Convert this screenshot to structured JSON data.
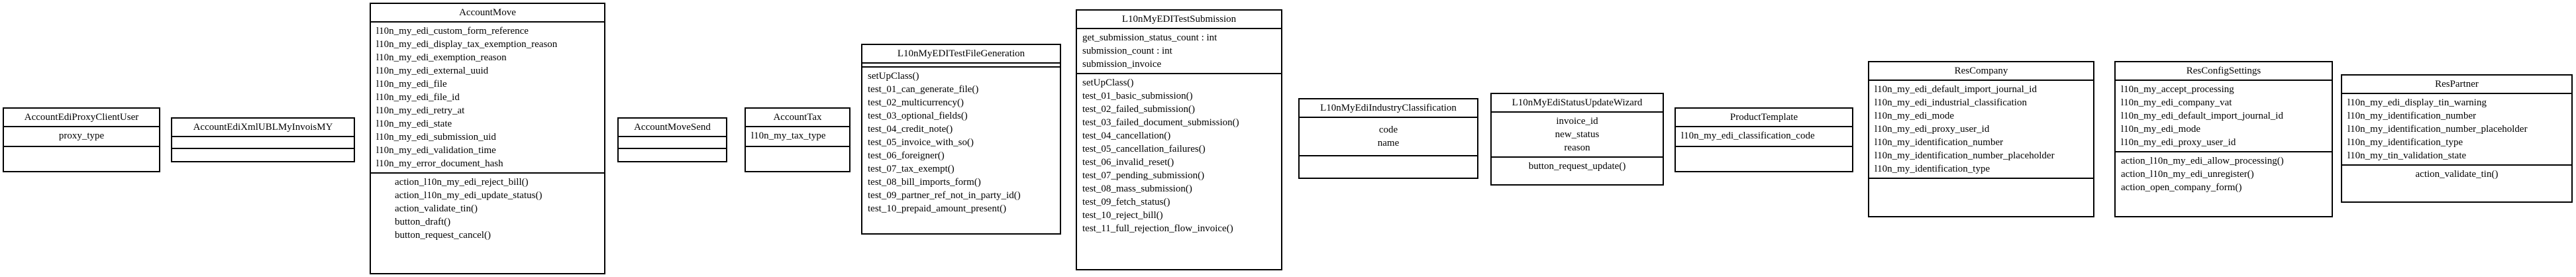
{
  "diagram": {
    "classes": [
      {
        "name": "AccountEdiProxyClientUser",
        "attributes": [
          "proxy_type"
        ],
        "methods": []
      },
      {
        "name": "AccountEdiXmlUBLMyInvoisMY",
        "attributes": [],
        "methods": []
      },
      {
        "name": "AccountMove",
        "attributes": [
          "l10n_my_edi_custom_form_reference",
          "l10n_my_edi_display_tax_exemption_reason",
          "l10n_my_edi_exemption_reason",
          "l10n_my_edi_external_uuid",
          "l10n_my_edi_file",
          "l10n_my_edi_file_id",
          "l10n_my_edi_retry_at",
          "l10n_my_edi_state",
          "l10n_my_edi_submission_uid",
          "l10n_my_edi_validation_time",
          "l10n_my_error_document_hash"
        ],
        "methods": [
          "action_l10n_my_edi_reject_bill()",
          "action_l10n_my_edi_update_status()",
          "action_validate_tin()",
          "button_draft()",
          "button_request_cancel()"
        ]
      },
      {
        "name": "AccountMoveSend",
        "attributes": [],
        "methods": []
      },
      {
        "name": "AccountTax",
        "attributes": [
          "l10n_my_tax_type"
        ],
        "methods": []
      },
      {
        "name": "L10nMyEDITestFileGeneration",
        "attributes": [],
        "methods": [
          "setUpClass()",
          "test_01_can_generate_file()",
          "test_02_multicurrency()",
          "test_03_optional_fields()",
          "test_04_credit_note()",
          "test_05_invoice_with_so()",
          "test_06_foreigner()",
          "test_07_tax_exempt()",
          "test_08_bill_imports_form()",
          "test_09_partner_ref_not_in_party_id()",
          "test_10_prepaid_amount_present()"
        ]
      },
      {
        "name": "L10nMyEDITestSubmission",
        "attributes": [
          "get_submission_status_count : int",
          "submission_count : int",
          "submission_invoice"
        ],
        "methods": [
          "setUpClass()",
          "test_01_basic_submission()",
          "test_02_failed_submission()",
          "test_03_failed_document_submission()",
          "test_04_cancellation()",
          "test_05_cancellation_failures()",
          "test_06_invalid_reset()",
          "test_07_pending_submission()",
          "test_08_mass_submission()",
          "test_09_fetch_status()",
          "test_10_reject_bill()",
          "test_11_full_rejection_flow_invoice()"
        ]
      },
      {
        "name": "L10nMyEdiIndustryClassification",
        "attributes": [
          "code",
          "name"
        ],
        "methods": []
      },
      {
        "name": "L10nMyEdiStatusUpdateWizard",
        "attributes": [
          "invoice_id",
          "new_status",
          "reason"
        ],
        "methods": [
          "button_request_update()"
        ]
      },
      {
        "name": "ProductTemplate",
        "attributes": [
          "l10n_my_edi_classification_code"
        ],
        "methods": []
      },
      {
        "name": "ResCompany",
        "attributes": [
          "l10n_my_edi_default_import_journal_id",
          "l10n_my_edi_industrial_classification",
          "l10n_my_edi_mode",
          "l10n_my_edi_proxy_user_id",
          "l10n_my_identification_number",
          "l10n_my_identification_number_placeholder",
          "l10n_my_identification_type"
        ],
        "methods": []
      },
      {
        "name": "ResConfigSettings",
        "attributes": [
          "l10n_my_accept_processing",
          "l10n_my_edi_company_vat",
          "l10n_my_edi_default_import_journal_id",
          "l10n_my_edi_mode",
          "l10n_my_edi_proxy_user_id"
        ],
        "methods": [
          "action_l10n_my_edi_allow_processing()",
          "action_l10n_my_edi_unregister()",
          "action_open_company_form()"
        ]
      },
      {
        "name": "ResPartner",
        "attributes": [
          "l10n_my_edi_display_tin_warning",
          "l10n_my_identification_number",
          "l10n_my_identification_number_placeholder",
          "l10n_my_identification_type",
          "l10n_my_tin_validation_state"
        ],
        "methods": [
          "action_validate_tin()"
        ]
      }
    ]
  }
}
